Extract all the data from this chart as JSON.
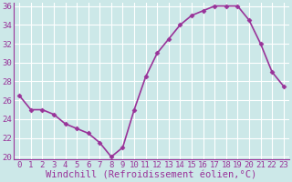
{
  "x": [
    0,
    1,
    2,
    3,
    4,
    5,
    6,
    7,
    8,
    9,
    10,
    11,
    12,
    13,
    14,
    15,
    16,
    17,
    18,
    19,
    20,
    21,
    22,
    23
  ],
  "y": [
    26.5,
    25.0,
    25.0,
    24.5,
    23.5,
    23.0,
    22.5,
    21.5,
    20.0,
    21.0,
    25.0,
    28.5,
    31.0,
    32.5,
    34.0,
    35.0,
    35.5,
    36.0,
    36.0,
    36.0,
    34.5,
    32.0,
    29.0,
    27.5
  ],
  "line_color": "#993399",
  "marker": "D",
  "marker_size": 2.5,
  "bg_color": "#cce8e8",
  "grid_color": "#ffffff",
  "xlabel": "Windchill (Refroidissement éolien,°C)",
  "xlabel_color": "#993399",
  "tick_color": "#993399",
  "axis_color": "#993399",
  "ylim": [
    20,
    36
  ],
  "yticks": [
    20,
    22,
    24,
    26,
    28,
    30,
    32,
    34,
    36
  ],
  "xticks": [
    0,
    1,
    2,
    3,
    4,
    5,
    6,
    7,
    8,
    9,
    10,
    11,
    12,
    13,
    14,
    15,
    16,
    17,
    18,
    19,
    20,
    21,
    22,
    23
  ],
  "xlabel_fontsize": 7.5,
  "tick_fontsize": 6.5,
  "line_width": 1.2
}
